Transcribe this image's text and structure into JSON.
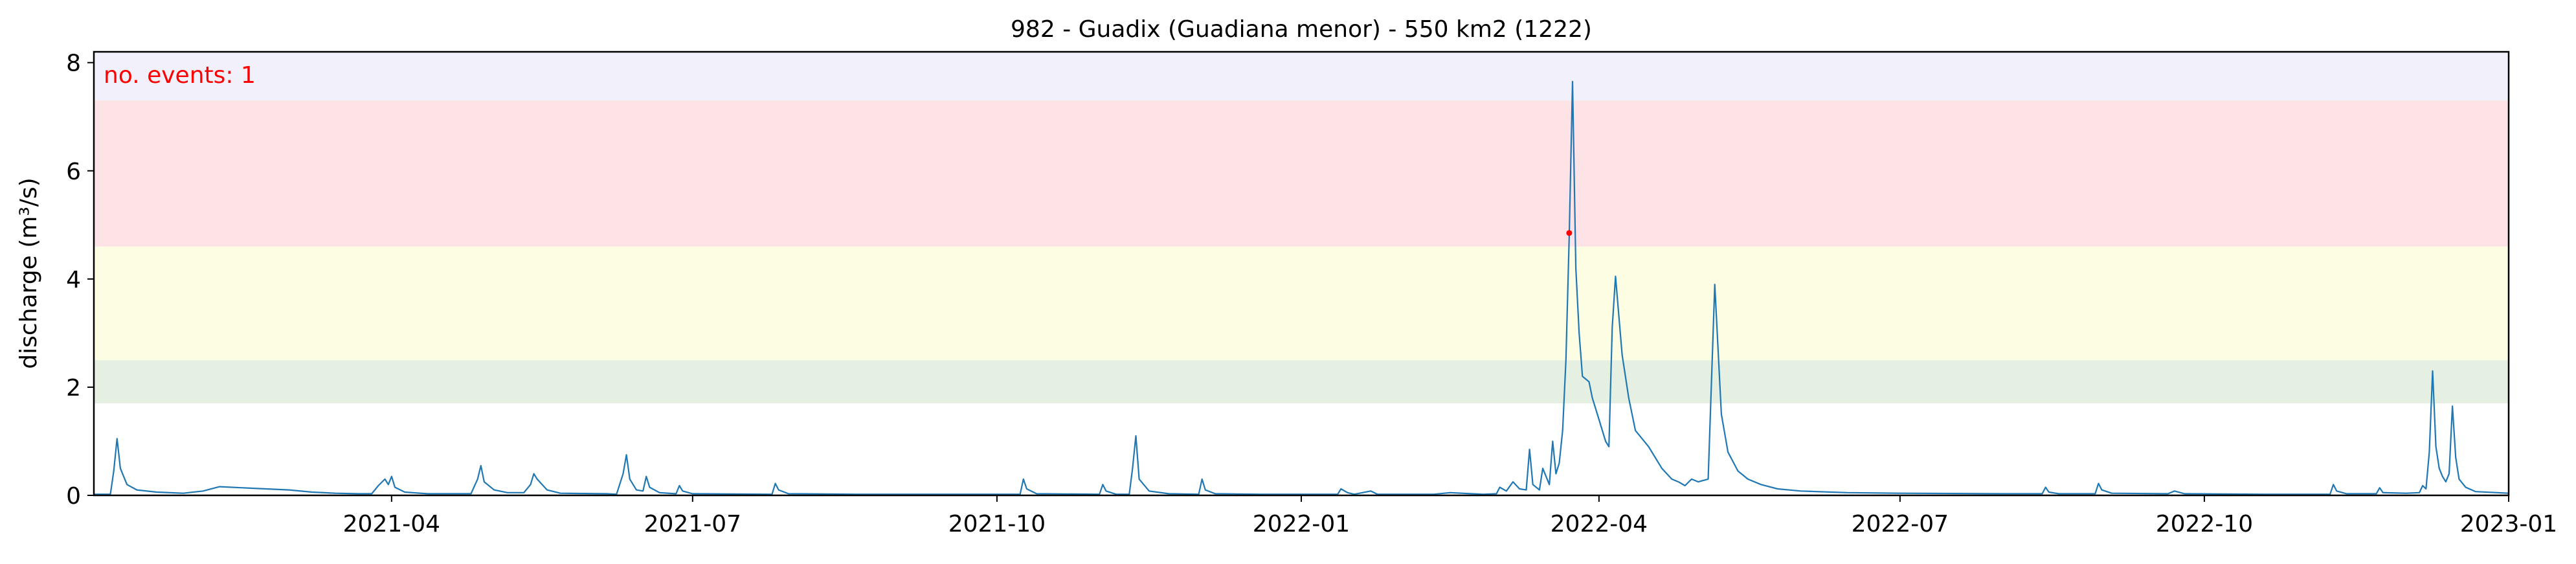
{
  "chart_data": {
    "type": "line",
    "title": "982 - Guadix (Guadiana menor) - 550 km2 (1222)",
    "ylabel": "discharge (m³/s)",
    "xlabel": "",
    "x_range": [
      "2021-01-01",
      "2023-01-01"
    ],
    "ylim": [
      0,
      8.2
    ],
    "grid": false,
    "yticks": [
      0,
      2,
      4,
      6,
      8
    ],
    "xticks": [
      {
        "date": "2021-04-01",
        "label": "2021-04"
      },
      {
        "date": "2021-07-01",
        "label": "2021-07"
      },
      {
        "date": "2021-10-01",
        "label": "2021-10"
      },
      {
        "date": "2022-01-01",
        "label": "2022-01"
      },
      {
        "date": "2022-04-01",
        "label": "2022-04"
      },
      {
        "date": "2022-07-01",
        "label": "2022-07"
      },
      {
        "date": "2022-10-01",
        "label": "2022-10"
      },
      {
        "date": "2023-01-01",
        "label": "2023-01"
      }
    ],
    "annotation": "no. events: 1",
    "threshold_bands": [
      {
        "from": 1.7,
        "to": 2.5,
        "color": "#e5f0e3"
      },
      {
        "from": 2.5,
        "to": 4.6,
        "color": "#fdfde4"
      },
      {
        "from": 4.6,
        "to": 7.3,
        "color": "#fde3e5"
      },
      {
        "from": 7.3,
        "to": 8.2,
        "color": "#f2f0fa"
      }
    ],
    "series": [
      {
        "color": "#1f77b4",
        "points": [
          [
            "2021-01-01",
            0.02
          ],
          [
            "2021-01-06",
            0.02
          ],
          [
            "2021-01-07",
            0.45
          ],
          [
            "2021-01-08",
            1.05
          ],
          [
            "2021-01-09",
            0.5
          ],
          [
            "2021-01-11",
            0.2
          ],
          [
            "2021-01-14",
            0.1
          ],
          [
            "2021-01-20",
            0.06
          ],
          [
            "2021-01-28",
            0.04
          ],
          [
            "2021-02-03",
            0.08
          ],
          [
            "2021-02-08",
            0.16
          ],
          [
            "2021-02-15",
            0.14
          ],
          [
            "2021-02-22",
            0.12
          ],
          [
            "2021-03-01",
            0.1
          ],
          [
            "2021-03-08",
            0.06
          ],
          [
            "2021-03-15",
            0.04
          ],
          [
            "2021-03-22",
            0.03
          ],
          [
            "2021-03-26",
            0.03
          ],
          [
            "2021-03-28",
            0.18
          ],
          [
            "2021-03-30",
            0.3
          ],
          [
            "2021-03-31",
            0.2
          ],
          [
            "2021-04-01",
            0.35
          ],
          [
            "2021-04-02",
            0.15
          ],
          [
            "2021-04-05",
            0.06
          ],
          [
            "2021-04-12",
            0.03
          ],
          [
            "2021-04-25",
            0.03
          ],
          [
            "2021-04-27",
            0.3
          ],
          [
            "2021-04-28",
            0.55
          ],
          [
            "2021-04-29",
            0.25
          ],
          [
            "2021-05-02",
            0.1
          ],
          [
            "2021-05-06",
            0.05
          ],
          [
            "2021-05-11",
            0.05
          ],
          [
            "2021-05-13",
            0.2
          ],
          [
            "2021-05-14",
            0.4
          ],
          [
            "2021-05-15",
            0.3
          ],
          [
            "2021-05-18",
            0.1
          ],
          [
            "2021-05-22",
            0.04
          ],
          [
            "2021-06-05",
            0.03
          ],
          [
            "2021-06-08",
            0.02
          ],
          [
            "2021-06-10",
            0.4
          ],
          [
            "2021-06-11",
            0.75
          ],
          [
            "2021-06-12",
            0.3
          ],
          [
            "2021-06-14",
            0.1
          ],
          [
            "2021-06-16",
            0.08
          ],
          [
            "2021-06-17",
            0.35
          ],
          [
            "2021-06-18",
            0.15
          ],
          [
            "2021-06-21",
            0.05
          ],
          [
            "2021-06-26",
            0.03
          ],
          [
            "2021-06-27",
            0.18
          ],
          [
            "2021-06-28",
            0.08
          ],
          [
            "2021-07-01",
            0.03
          ],
          [
            "2021-07-25",
            0.02
          ],
          [
            "2021-07-26",
            0.22
          ],
          [
            "2021-07-27",
            0.1
          ],
          [
            "2021-07-30",
            0.03
          ],
          [
            "2021-08-20",
            0.02
          ],
          [
            "2021-09-20",
            0.02
          ],
          [
            "2021-10-08",
            0.02
          ],
          [
            "2021-10-09",
            0.3
          ],
          [
            "2021-10-10",
            0.12
          ],
          [
            "2021-10-13",
            0.03
          ],
          [
            "2021-11-01",
            0.02
          ],
          [
            "2021-11-02",
            0.2
          ],
          [
            "2021-11-03",
            0.08
          ],
          [
            "2021-11-06",
            0.02
          ],
          [
            "2021-11-10",
            0.02
          ],
          [
            "2021-11-11",
            0.5
          ],
          [
            "2021-11-12",
            1.1
          ],
          [
            "2021-11-13",
            0.3
          ],
          [
            "2021-11-16",
            0.08
          ],
          [
            "2021-11-22",
            0.03
          ],
          [
            "2021-12-01",
            0.02
          ],
          [
            "2021-12-02",
            0.3
          ],
          [
            "2021-12-03",
            0.1
          ],
          [
            "2021-12-06",
            0.03
          ],
          [
            "2021-12-20",
            0.02
          ],
          [
            "2022-01-12",
            0.02
          ],
          [
            "2022-01-13",
            0.12
          ],
          [
            "2022-01-15",
            0.05
          ],
          [
            "2022-01-17",
            0.02
          ],
          [
            "2022-01-22",
            0.08
          ],
          [
            "2022-01-24",
            0.02
          ],
          [
            "2022-02-10",
            0.02
          ],
          [
            "2022-02-15",
            0.05
          ],
          [
            "2022-02-25",
            0.02
          ],
          [
            "2022-03-01",
            0.03
          ],
          [
            "2022-03-02",
            0.15
          ],
          [
            "2022-03-04",
            0.08
          ],
          [
            "2022-03-06",
            0.25
          ],
          [
            "2022-03-08",
            0.12
          ],
          [
            "2022-03-10",
            0.1
          ],
          [
            "2022-03-11",
            0.85
          ],
          [
            "2022-03-12",
            0.2
          ],
          [
            "2022-03-14",
            0.1
          ],
          [
            "2022-03-15",
            0.5
          ],
          [
            "2022-03-16",
            0.35
          ],
          [
            "2022-03-17",
            0.2
          ],
          [
            "2022-03-18",
            1.0
          ],
          [
            "2022-03-19",
            0.4
          ],
          [
            "2022-03-20",
            0.6
          ],
          [
            "2022-03-21",
            1.2
          ],
          [
            "2022-03-22",
            2.5
          ],
          [
            "2022-03-23",
            4.8
          ],
          [
            "2022-03-24",
            7.65
          ],
          [
            "2022-03-25",
            4.2
          ],
          [
            "2022-03-26",
            3.0
          ],
          [
            "2022-03-27",
            2.2
          ],
          [
            "2022-03-28",
            2.15
          ],
          [
            "2022-03-29",
            2.1
          ],
          [
            "2022-03-30",
            1.8
          ],
          [
            "2022-04-01",
            1.4
          ],
          [
            "2022-04-03",
            1.0
          ],
          [
            "2022-04-04",
            0.9
          ],
          [
            "2022-04-05",
            3.1
          ],
          [
            "2022-04-06",
            4.05
          ],
          [
            "2022-04-08",
            2.6
          ],
          [
            "2022-04-10",
            1.8
          ],
          [
            "2022-04-12",
            1.2
          ],
          [
            "2022-04-14",
            1.05
          ],
          [
            "2022-04-16",
            0.9
          ],
          [
            "2022-04-18",
            0.7
          ],
          [
            "2022-04-20",
            0.5
          ],
          [
            "2022-04-23",
            0.3
          ],
          [
            "2022-04-25",
            0.25
          ],
          [
            "2022-04-27",
            0.18
          ],
          [
            "2022-04-29",
            0.3
          ],
          [
            "2022-05-01",
            0.25
          ],
          [
            "2022-05-04",
            0.3
          ],
          [
            "2022-05-06",
            3.9
          ],
          [
            "2022-05-08",
            1.5
          ],
          [
            "2022-05-10",
            0.8
          ],
          [
            "2022-05-13",
            0.45
          ],
          [
            "2022-05-16",
            0.3
          ],
          [
            "2022-05-20",
            0.2
          ],
          [
            "2022-05-25",
            0.12
          ],
          [
            "2022-06-01",
            0.08
          ],
          [
            "2022-06-15",
            0.05
          ],
          [
            "2022-07-01",
            0.04
          ],
          [
            "2022-08-01",
            0.03
          ],
          [
            "2022-08-13",
            0.03
          ],
          [
            "2022-08-14",
            0.15
          ],
          [
            "2022-08-15",
            0.06
          ],
          [
            "2022-08-18",
            0.03
          ],
          [
            "2022-08-29",
            0.03
          ],
          [
            "2022-08-30",
            0.22
          ],
          [
            "2022-08-31",
            0.1
          ],
          [
            "2022-09-03",
            0.04
          ],
          [
            "2022-09-20",
            0.03
          ],
          [
            "2022-09-22",
            0.08
          ],
          [
            "2022-09-25",
            0.03
          ],
          [
            "2022-10-20",
            0.02
          ],
          [
            "2022-11-08",
            0.02
          ],
          [
            "2022-11-09",
            0.2
          ],
          [
            "2022-11-10",
            0.08
          ],
          [
            "2022-11-13",
            0.03
          ],
          [
            "2022-11-22",
            0.03
          ],
          [
            "2022-11-23",
            0.14
          ],
          [
            "2022-11-24",
            0.05
          ],
          [
            "2022-12-01",
            0.04
          ],
          [
            "2022-12-05",
            0.05
          ],
          [
            "2022-12-06",
            0.18
          ],
          [
            "2022-12-07",
            0.12
          ],
          [
            "2022-12-08",
            0.8
          ],
          [
            "2022-12-09",
            2.3
          ],
          [
            "2022-12-10",
            0.9
          ],
          [
            "2022-12-11",
            0.5
          ],
          [
            "2022-12-12",
            0.35
          ],
          [
            "2022-12-13",
            0.25
          ],
          [
            "2022-12-14",
            0.4
          ],
          [
            "2022-12-15",
            1.65
          ],
          [
            "2022-12-16",
            0.7
          ],
          [
            "2022-12-17",
            0.3
          ],
          [
            "2022-12-19",
            0.15
          ],
          [
            "2022-12-22",
            0.07
          ],
          [
            "2023-01-01",
            0.04
          ]
        ]
      }
    ],
    "event_markers": [
      {
        "date": "2022-03-23",
        "value": 4.85,
        "color": "#ff0000"
      }
    ]
  }
}
